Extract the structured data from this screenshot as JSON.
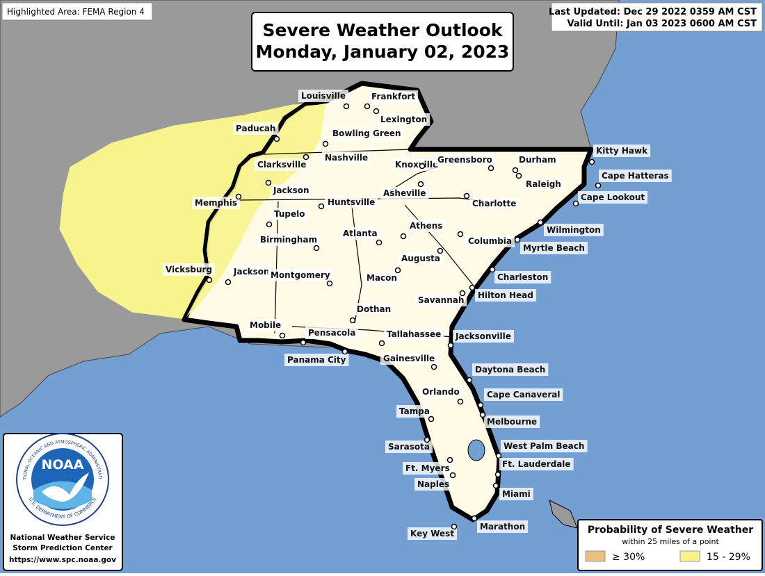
{
  "header": {
    "highlighted_area": "Highlighted Area: FEMA Region 4",
    "last_updated": "Last Updated: Dec 29 2022 0359 AM CST",
    "valid_until": "Valid Until: Jan 03 2023 0600 AM CST"
  },
  "title": {
    "line1": "Severe Weather Outlook",
    "line2": "Monday, January 02, 2023"
  },
  "cities": [
    "Louisville",
    "Frankfort",
    "Lexington",
    "Paducah",
    "Bowling Green",
    "Nashville",
    "Clarksville",
    "Knoxville",
    "Greensboro",
    "Durham",
    "Kitty Hawk",
    "Raleigh",
    "Cape Hatteras",
    "Jackson",
    "Asheville",
    "Memphis",
    "Huntsville",
    "Charlotte",
    "Cape Lookout",
    "Tupelo",
    "Wilmington",
    "Atlanta",
    "Athens",
    "Columbia",
    "Birmingham",
    "Myrtle Beach",
    "Augusta",
    "Vicksburg",
    "Jackson",
    "Montgomery",
    "Charleston",
    "Macon",
    "Hilton Head",
    "Savannah",
    "Dothan",
    "Mobile",
    "Pensacola",
    "Tallahassee",
    "Jacksonville",
    "Panama City",
    "Gainesville",
    "Daytona Beach",
    "Orlando",
    "Cape Canaveral",
    "Tampa",
    "Melbourne",
    "West Palm Beach",
    "Sarasota",
    "Ft. Lauderdale",
    "Ft. Myers",
    "Naples",
    "Miami",
    "Marathon",
    "Key West"
  ],
  "logo": {
    "acronym": "NOAA",
    "ring_top": "NATIONAL OCEANIC AND ATMOSPHERIC ADMINISTRATION",
    "ring_bottom": "U.S. DEPARTMENT OF COMMERCE",
    "agency": "National Weather Service",
    "center": "Storm Prediction Center",
    "url": "https://www.spc.noaa.gov"
  },
  "legend": {
    "title": "Probability of Severe Weather",
    "subtitle": "within 25 miles of a point",
    "items": [
      {
        "label": "≥ 30%",
        "color": "#e8c07f"
      },
      {
        "label": "15 - 29%",
        "color": "#f8f48d"
      }
    ]
  }
}
